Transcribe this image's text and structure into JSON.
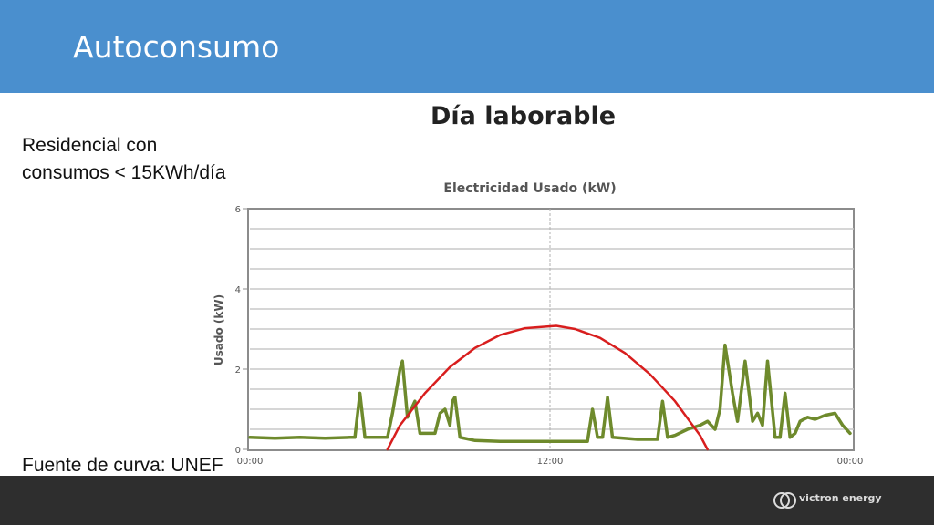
{
  "slide": {
    "title": "Autoconsumo",
    "subtitle_line1": "Residencial con",
    "subtitle_line2": "consumos < 15KWh/día",
    "source": "Fuente de curva: UNEF",
    "chart_heading": "Día laborable",
    "logo_text": "victron energy",
    "header_color": "#4a8fce",
    "footer_color": "#2e2e2e"
  },
  "chart_data": {
    "type": "line",
    "title": "Electricidad Usado (kW)",
    "xlabel": "",
    "ylabel": "Usado (kW)",
    "x_ticks": [
      {
        "h": 0,
        "label": "00:00"
      },
      {
        "h": 12,
        "label": "12:00"
      },
      {
        "h": 24,
        "label": "00:00"
      }
    ],
    "y_ticks": [
      0,
      2,
      4,
      6
    ],
    "xlim": [
      0,
      24
    ],
    "ylim": [
      0,
      6
    ],
    "grid": true,
    "series": [
      {
        "color": "#6e8a2c",
        "points": [
          [
            0.0,
            0.3
          ],
          [
            1.0,
            0.28
          ],
          [
            2.0,
            0.3
          ],
          [
            3.0,
            0.28
          ],
          [
            4.0,
            0.3
          ],
          [
            4.2,
            0.3
          ],
          [
            4.4,
            1.4
          ],
          [
            4.6,
            0.3
          ],
          [
            5.5,
            0.3
          ],
          [
            5.7,
            0.9
          ],
          [
            6.0,
            2.0
          ],
          [
            6.1,
            2.2
          ],
          [
            6.3,
            0.8
          ],
          [
            6.6,
            1.2
          ],
          [
            6.8,
            0.4
          ],
          [
            7.4,
            0.4
          ],
          [
            7.6,
            0.9
          ],
          [
            7.8,
            1.0
          ],
          [
            8.0,
            0.6
          ],
          [
            8.1,
            1.2
          ],
          [
            8.2,
            1.3
          ],
          [
            8.4,
            0.3
          ],
          [
            9.0,
            0.22
          ],
          [
            10.0,
            0.2
          ],
          [
            11.0,
            0.2
          ],
          [
            12.0,
            0.2
          ],
          [
            13.0,
            0.2
          ],
          [
            13.5,
            0.2
          ],
          [
            13.7,
            1.0
          ],
          [
            13.9,
            0.3
          ],
          [
            14.1,
            0.3
          ],
          [
            14.3,
            1.3
          ],
          [
            14.5,
            0.3
          ],
          [
            15.5,
            0.25
          ],
          [
            16.3,
            0.25
          ],
          [
            16.5,
            1.2
          ],
          [
            16.7,
            0.3
          ],
          [
            17.0,
            0.35
          ],
          [
            17.5,
            0.5
          ],
          [
            18.0,
            0.6
          ],
          [
            18.3,
            0.7
          ],
          [
            18.6,
            0.5
          ],
          [
            18.8,
            1.0
          ],
          [
            19.0,
            2.6
          ],
          [
            19.3,
            1.4
          ],
          [
            19.5,
            0.7
          ],
          [
            19.8,
            2.2
          ],
          [
            20.1,
            0.7
          ],
          [
            20.3,
            0.9
          ],
          [
            20.5,
            0.6
          ],
          [
            20.7,
            2.2
          ],
          [
            21.0,
            0.3
          ],
          [
            21.2,
            0.3
          ],
          [
            21.4,
            1.4
          ],
          [
            21.6,
            0.3
          ],
          [
            21.8,
            0.4
          ],
          [
            22.0,
            0.7
          ],
          [
            22.3,
            0.8
          ],
          [
            22.6,
            0.75
          ],
          [
            23.0,
            0.85
          ],
          [
            23.4,
            0.9
          ],
          [
            23.7,
            0.6
          ],
          [
            24.0,
            0.4
          ]
        ]
      },
      {
        "color": "#d81e1e",
        "points": [
          [
            5.5,
            0.0
          ],
          [
            6.0,
            0.6
          ],
          [
            7.0,
            1.4
          ],
          [
            8.0,
            2.05
          ],
          [
            9.0,
            2.53
          ],
          [
            10.0,
            2.85
          ],
          [
            11.0,
            3.02
          ],
          [
            12.25,
            3.08
          ],
          [
            13.0,
            3.0
          ],
          [
            14.0,
            2.78
          ],
          [
            15.0,
            2.4
          ],
          [
            16.0,
            1.87
          ],
          [
            17.0,
            1.2
          ],
          [
            18.0,
            0.35
          ],
          [
            18.3,
            0.0
          ]
        ]
      }
    ]
  }
}
